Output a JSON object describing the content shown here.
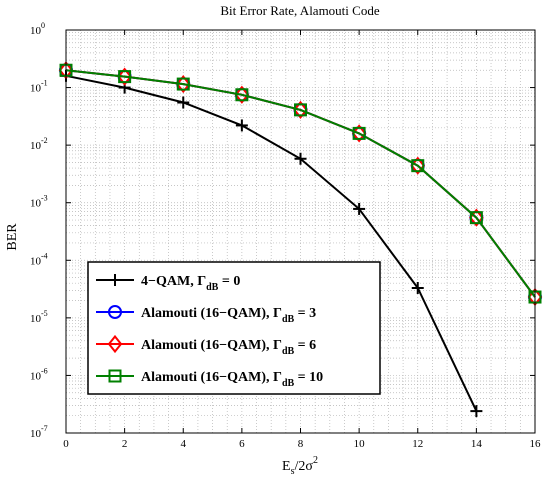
{
  "chart_data": {
    "type": "line",
    "title": "Bit Error Rate, Alamouti Code",
    "xlabel": {
      "main": "E",
      "sub": "s",
      "rest": "/2σ",
      "sup": "2"
    },
    "ylabel": "BER",
    "xlim": [
      0,
      16
    ],
    "ylim": [
      1e-07,
      1
    ],
    "yscale": "log",
    "grid": "dotted major and minor",
    "legend_position": "bottom-left",
    "x_ticks": [
      "0",
      "2",
      "4",
      "6",
      "8",
      "10",
      "12",
      "14",
      "16"
    ],
    "y_ticks": [
      {
        "base": "10",
        "exp": "0"
      },
      {
        "base": "10",
        "exp": "-1"
      },
      {
        "base": "10",
        "exp": "-2"
      },
      {
        "base": "10",
        "exp": "-3"
      },
      {
        "base": "10",
        "exp": "-4"
      },
      {
        "base": "10",
        "exp": "-5"
      },
      {
        "base": "10",
        "exp": "-6"
      },
      {
        "base": "10",
        "exp": "-7"
      }
    ],
    "series": [
      {
        "name": "4−QAM, Γ_dB = 0",
        "legend": {
          "main": "4−QAM, Γ",
          "sub": "dB",
          "rest": " = 0"
        },
        "color": "#000000",
        "marker": "plus",
        "x": [
          0,
          2,
          4,
          6,
          8,
          10,
          12,
          14
        ],
        "y": [
          0.16,
          0.1,
          0.055,
          0.022,
          0.0058,
          0.00078,
          3.3e-05,
          2.4e-07
        ]
      },
      {
        "name": "Alamouti (16−QAM), Γ_dB = 3",
        "legend": {
          "main": "Alamouti (16−QAM), Γ",
          "sub": "dB",
          "rest": " = 3"
        },
        "color": "#0000ff",
        "marker": "circle",
        "x": [
          0,
          2,
          4,
          6,
          8,
          10,
          12,
          14,
          16
        ],
        "y": [
          0.2,
          0.155,
          0.115,
          0.075,
          0.041,
          0.016,
          0.0044,
          0.00055,
          2.3e-05
        ]
      },
      {
        "name": "Alamouti (16−QAM), Γ_dB = 6",
        "legend": {
          "main": "Alamouti (16−QAM), Γ",
          "sub": "dB",
          "rest": " = 6"
        },
        "color": "#ff0000",
        "marker": "diamond",
        "x": [
          0,
          2,
          4,
          6,
          8,
          10,
          12,
          14,
          16
        ],
        "y": [
          0.2,
          0.155,
          0.115,
          0.075,
          0.041,
          0.016,
          0.0044,
          0.00055,
          2.3e-05
        ]
      },
      {
        "name": "Alamouti (16−QAM), Γ_dB = 10",
        "legend": {
          "main": "Alamouti (16−QAM), Γ",
          "sub": "dB",
          "rest": " = 10"
        },
        "color": "#008000",
        "marker": "square",
        "x": [
          0,
          2,
          4,
          6,
          8,
          10,
          12,
          14,
          16
        ],
        "y": [
          0.2,
          0.155,
          0.115,
          0.075,
          0.041,
          0.016,
          0.0044,
          0.00055,
          2.3e-05
        ]
      }
    ]
  }
}
